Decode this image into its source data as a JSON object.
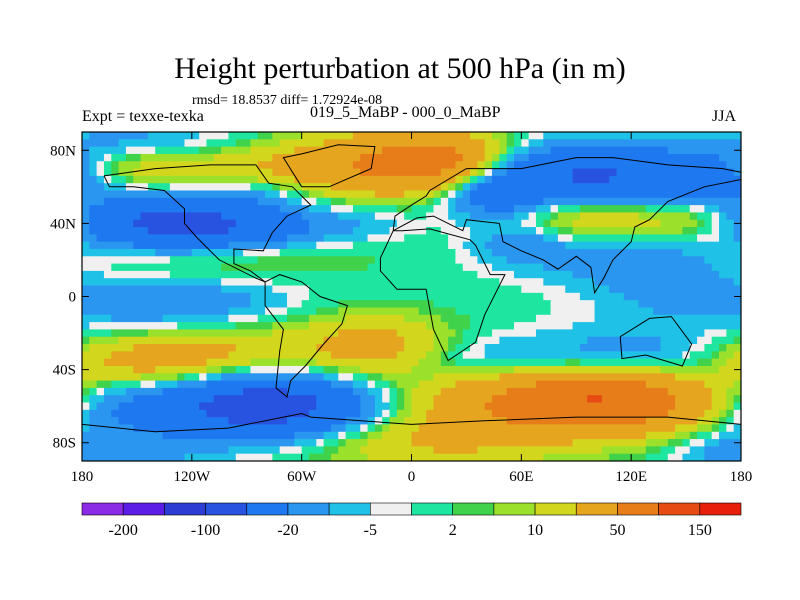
{
  "title": "Height perturbation at 500 hPa (in m)",
  "stats": "rmsd= 18.8537  diff= 1.72924e-08",
  "expt": "Expt = texxe-texka",
  "difference_label": "019_5_MaBP - 000_0_MaBP",
  "season": "JJA",
  "chart_data": {
    "type": "heatmap",
    "title": "Height perturbation at 500 hPa (in m)",
    "projection": "cylindrical equidistant",
    "xlabel": "",
    "ylabel": "",
    "xlim": [
      -180,
      180
    ],
    "ylim": [
      -90,
      90
    ],
    "x_ticks": [
      {
        "value": -180,
        "label": "180"
      },
      {
        "value": -120,
        "label": "120W"
      },
      {
        "value": -60,
        "label": "60W"
      },
      {
        "value": 0,
        "label": "0"
      },
      {
        "value": 60,
        "label": "60E"
      },
      {
        "value": 120,
        "label": "120E"
      },
      {
        "value": 180,
        "label": "180"
      }
    ],
    "y_ticks": [
      {
        "value": 80,
        "label": "80N"
      },
      {
        "value": 40,
        "label": "40N"
      },
      {
        "value": 0,
        "label": "0"
      },
      {
        "value": -40,
        "label": "40S"
      },
      {
        "value": -80,
        "label": "80S"
      }
    ],
    "contour_levels": [
      -200,
      -150,
      -100,
      -50,
      -20,
      -10,
      -5,
      -2,
      2,
      5,
      10,
      20,
      50,
      100,
      150,
      200
    ],
    "colorbar": {
      "colors": [
        "#8c2be6",
        "#5a1ee6",
        "#2d3cd2",
        "#2852e0",
        "#1e78f0",
        "#2a96f0",
        "#1fc2e6",
        "#f0f0f0",
        "#1ee6a0",
        "#3fd24a",
        "#9be12b",
        "#d2d71e",
        "#e6a51e",
        "#e67d19",
        "#e64b14",
        "#e61e0a"
      ],
      "labels": [
        {
          "label": "-200",
          "after_box": 1
        },
        {
          "label": "-100",
          "after_box": 3
        },
        {
          "label": "-20",
          "after_box": 5
        },
        {
          "label": "-5",
          "after_box": 7
        },
        {
          "label": "2",
          "after_box": 9
        },
        {
          "label": "10",
          "after_box": 11
        },
        {
          "label": "50",
          "after_box": 13
        },
        {
          "label": "150",
          "after_box": 15
        }
      ]
    },
    "field_features": [
      {
        "lon": -150,
        "lat": 85,
        "value": -12,
        "sx": 35,
        "sy": 8
      },
      {
        "lon": -140,
        "lat": 70,
        "value": 18,
        "sx": 40,
        "sy": 8
      },
      {
        "lon": -70,
        "lat": 68,
        "value": 12,
        "sx": 25,
        "sy": 10
      },
      {
        "lon": -10,
        "lat": 72,
        "value": 55,
        "sx": 35,
        "sy": 12
      },
      {
        "lon": 20,
        "lat": 75,
        "value": 35,
        "sx": 20,
        "sy": 10
      },
      {
        "lon": -80,
        "lat": 58,
        "value": -12,
        "sx": 25,
        "sy": 7
      },
      {
        "lon": 100,
        "lat": 65,
        "value": -55,
        "sx": 45,
        "sy": 12
      },
      {
        "lon": 45,
        "lat": 55,
        "value": -30,
        "sx": 20,
        "sy": 10
      },
      {
        "lon": 165,
        "lat": 65,
        "value": -20,
        "sx": 20,
        "sy": 10
      },
      {
        "lon": -130,
        "lat": 40,
        "value": -60,
        "sx": 35,
        "sy": 10
      },
      {
        "lon": -75,
        "lat": 38,
        "value": -18,
        "sx": 30,
        "sy": 8
      },
      {
        "lon": -20,
        "lat": 42,
        "value": -6,
        "sx": 20,
        "sy": 8
      },
      {
        "lon": 100,
        "lat": 45,
        "value": 25,
        "sx": 40,
        "sy": 10
      },
      {
        "lon": 160,
        "lat": 42,
        "value": 8,
        "sx": 20,
        "sy": 8
      },
      {
        "lon": 60,
        "lat": 30,
        "value": -15,
        "sx": 20,
        "sy": 8
      },
      {
        "lon": -110,
        "lat": 22,
        "value": 8,
        "sx": 60,
        "sy": 8
      },
      {
        "lon": 110,
        "lat": 20,
        "value": -12,
        "sx": 40,
        "sy": 10
      },
      {
        "lon": -150,
        "lat": -5,
        "value": -14,
        "sx": 30,
        "sy": 10
      },
      {
        "lon": -100,
        "lat": -2,
        "value": -10,
        "sx": 30,
        "sy": 8
      },
      {
        "lon": 140,
        "lat": 5,
        "value": -12,
        "sx": 30,
        "sy": 15
      },
      {
        "lon": -140,
        "lat": -35,
        "value": 30,
        "sx": 40,
        "sy": 10
      },
      {
        "lon": -20,
        "lat": -28,
        "value": 30,
        "sx": 30,
        "sy": 12
      },
      {
        "lon": -90,
        "lat": -28,
        "value": 8,
        "sx": 25,
        "sy": 8
      },
      {
        "lon": 30,
        "lat": -35,
        "value": -12,
        "sx": 35,
        "sy": 10
      },
      {
        "lon": 120,
        "lat": -35,
        "value": -18,
        "sx": 40,
        "sy": 12
      },
      {
        "lon": -80,
        "lat": -60,
        "value": -70,
        "sx": 40,
        "sy": 12
      },
      {
        "lon": -160,
        "lat": -62,
        "value": -18,
        "sx": 25,
        "sy": 10
      },
      {
        "lon": 85,
        "lat": -58,
        "value": 70,
        "sx": 50,
        "sy": 12
      },
      {
        "lon": 110,
        "lat": -55,
        "value": 40,
        "sx": 30,
        "sy": 10
      },
      {
        "lon": 10,
        "lat": -80,
        "value": 20,
        "sx": 50,
        "sy": 10
      },
      {
        "lon": -150,
        "lat": -85,
        "value": -12,
        "sx": 30,
        "sy": 8
      },
      {
        "lon": 170,
        "lat": -85,
        "value": -10,
        "sx": 20,
        "sy": 8
      }
    ]
  }
}
